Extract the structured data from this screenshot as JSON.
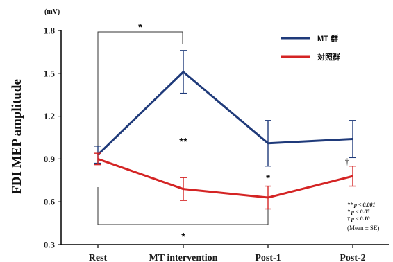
{
  "chart_data": {
    "type": "line",
    "title": "",
    "ylabel": "FDI MEP amplitude",
    "yunit": "(mV)",
    "ylim": [
      0.3,
      1.8
    ],
    "yticks": [
      "0.3",
      "0.6",
      "0.9",
      "1.2",
      "1.5",
      "1.8"
    ],
    "categories": [
      "Rest",
      "MT intervention",
      "Post-1",
      "Post-2"
    ],
    "series": [
      {
        "name": "MT 群",
        "color": "#1f3a7a",
        "values": [
          0.93,
          1.51,
          1.01,
          1.04
        ],
        "errors": [
          0.06,
          0.15,
          0.16,
          0.13
        ]
      },
      {
        "name": "対照群",
        "color": "#d42424",
        "values": [
          0.9,
          0.69,
          0.63,
          0.78
        ],
        "errors": [
          0.04,
          0.08,
          0.08,
          0.07
        ]
      }
    ],
    "annotations": {
      "top_bracket": "*",
      "bottom_bracket": "*",
      "mt_double_star": "**",
      "post1_star": "*",
      "post2_dagger": "†"
    },
    "legend_position": "top-right",
    "significance_notes": [
      "** p < 0.001",
      "*  p < 0.05",
      "†  p < 0.10"
    ],
    "footnote": "(Mean ± SE)"
  }
}
